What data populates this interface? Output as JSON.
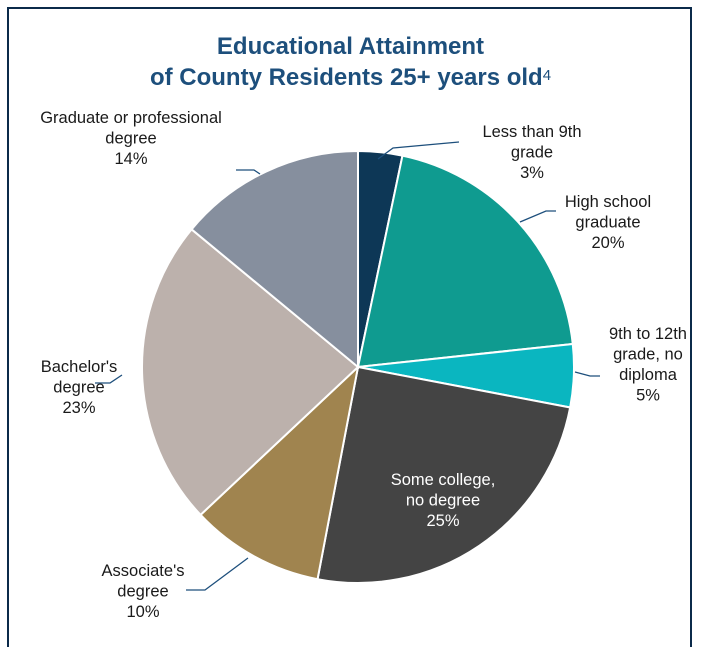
{
  "chart_data": {
    "type": "pie",
    "title_line1": "Educational Attainment",
    "title_line2": "of County Residents 25+ years old",
    "title_footnote": "4",
    "slices": [
      {
        "label_lines": [
          "Less than 9th",
          "grade"
        ],
        "value_label": "3%",
        "value": 3.3,
        "color": "#0d3756"
      },
      {
        "label_lines": [
          "High school",
          "graduate"
        ],
        "value_label": "20%",
        "value": 20,
        "color": "#0f9b90"
      },
      {
        "label_lines": [
          "9th to 12th",
          "grade, no",
          "diploma"
        ],
        "value_label": "5%",
        "value": 4.7,
        "color": "#0ab6c0"
      },
      {
        "label_lines": [
          "Some college,",
          "no degree"
        ],
        "value_label": "25%",
        "value": 25,
        "color": "#444444"
      },
      {
        "label_lines": [
          "Associate's",
          "degree"
        ],
        "value_label": "10%",
        "value": 10,
        "color": "#a0844f"
      },
      {
        "label_lines": [
          "Bachelor's",
          "degree"
        ],
        "value_label": "23%",
        "value": 23,
        "color": "#bcb1ac"
      },
      {
        "label_lines": [
          "Graduate or professional",
          "degree"
        ],
        "value_label": "14%",
        "value": 14,
        "color": "#868f9e"
      }
    ]
  }
}
